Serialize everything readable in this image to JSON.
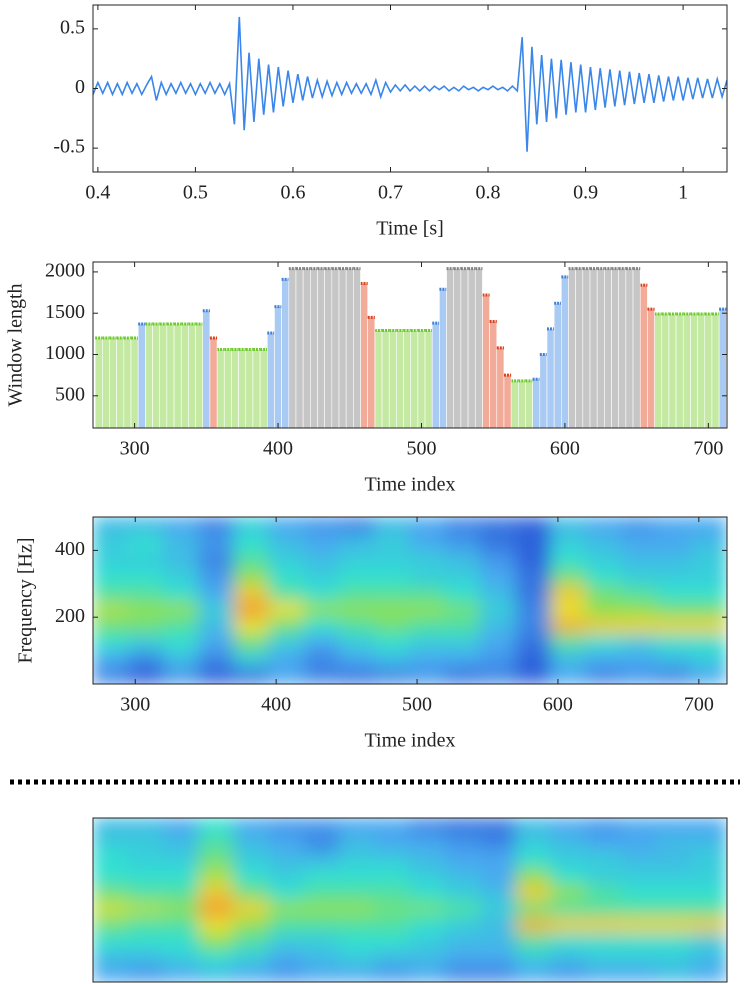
{
  "chart_data": [
    {
      "type": "line",
      "xlabel": "Time [s]",
      "color": "#3a86ea",
      "xlim": [
        0.395,
        1.045
      ],
      "ylim": [
        -0.7,
        0.7
      ],
      "xticks": [
        0.4,
        0.5,
        0.6,
        0.7,
        0.8,
        0.9,
        1
      ],
      "yticks": [
        -0.5,
        0,
        0.5
      ],
      "x": [
        0.395,
        0.4,
        0.405,
        0.41,
        0.415,
        0.42,
        0.425,
        0.43,
        0.435,
        0.44,
        0.445,
        0.45,
        0.455,
        0.46,
        0.465,
        0.47,
        0.475,
        0.48,
        0.485,
        0.49,
        0.495,
        0.5,
        0.505,
        0.51,
        0.515,
        0.52,
        0.525,
        0.53,
        0.535,
        0.54,
        0.545,
        0.55,
        0.555,
        0.56,
        0.565,
        0.57,
        0.575,
        0.58,
        0.585,
        0.59,
        0.595,
        0.6,
        0.605,
        0.61,
        0.615,
        0.62,
        0.625,
        0.63,
        0.635,
        0.64,
        0.645,
        0.65,
        0.655,
        0.66,
        0.665,
        0.67,
        0.675,
        0.68,
        0.685,
        0.69,
        0.695,
        0.7,
        0.705,
        0.71,
        0.715,
        0.72,
        0.725,
        0.73,
        0.735,
        0.74,
        0.745,
        0.75,
        0.755,
        0.76,
        0.765,
        0.77,
        0.775,
        0.78,
        0.785,
        0.79,
        0.795,
        0.8,
        0.805,
        0.81,
        0.815,
        0.82,
        0.825,
        0.83,
        0.835,
        0.84,
        0.845,
        0.85,
        0.855,
        0.86,
        0.865,
        0.87,
        0.875,
        0.88,
        0.885,
        0.89,
        0.895,
        0.9,
        0.905,
        0.91,
        0.915,
        0.92,
        0.925,
        0.93,
        0.935,
        0.94,
        0.945,
        0.95,
        0.955,
        0.96,
        0.965,
        0.97,
        0.975,
        0.98,
        0.985,
        0.99,
        0.995,
        1.0,
        1.005,
        1.01,
        1.015,
        1.02,
        1.025,
        1.03,
        1.035,
        1.04,
        1.045
      ],
      "values": [
        -0.05,
        0.05,
        -0.04,
        0.05,
        -0.05,
        0.04,
        -0.05,
        0.05,
        -0.04,
        0.04,
        -0.05,
        0.03,
        0.1,
        -0.1,
        0.05,
        -0.05,
        0.04,
        -0.04,
        0.05,
        -0.04,
        0.04,
        -0.05,
        0.04,
        -0.04,
        0.05,
        -0.04,
        0.04,
        -0.05,
        0.04,
        -0.3,
        0.6,
        -0.35,
        0.3,
        -0.28,
        0.25,
        -0.22,
        0.2,
        -0.2,
        0.18,
        -0.15,
        0.15,
        -0.12,
        0.12,
        -0.1,
        0.1,
        -0.08,
        0.07,
        -0.07,
        0.06,
        -0.06,
        0.05,
        -0.05,
        0.05,
        -0.04,
        0.04,
        -0.04,
        0.04,
        -0.05,
        0.07,
        -0.07,
        0.05,
        -0.03,
        0.03,
        -0.02,
        0.03,
        -0.02,
        0.02,
        -0.02,
        0.02,
        -0.02,
        0.02,
        -0.01,
        0.02,
        -0.02,
        0.01,
        -0.02,
        0.02,
        -0.01,
        0.01,
        -0.02,
        0.01,
        -0.01,
        0.02,
        -0.01,
        0.01,
        -0.02,
        0.02,
        -0.02,
        0.43,
        -0.53,
        0.35,
        -0.3,
        0.28,
        -0.28,
        0.25,
        -0.25,
        0.24,
        -0.22,
        0.22,
        -0.2,
        0.2,
        -0.2,
        0.18,
        -0.18,
        0.17,
        -0.16,
        0.16,
        -0.15,
        0.15,
        -0.14,
        0.14,
        -0.13,
        0.13,
        -0.12,
        0.12,
        -0.12,
        0.11,
        -0.11,
        0.1,
        -0.1,
        0.1,
        -0.1,
        0.09,
        -0.09,
        0.09,
        -0.08,
        0.08,
        -0.08,
        0.08,
        -0.07,
        0.07
      ]
    },
    {
      "type": "stem",
      "xlabel": "Time index",
      "ylabel": "Window length",
      "xlim": [
        271,
        713
      ],
      "ylim": [
        110,
        2120
      ],
      "xticks": [
        300,
        400,
        500,
        600,
        700
      ],
      "yticks": [
        500,
        1000,
        1500,
        2000
      ],
      "series": [
        {
          "color": "#6cc92c",
          "fill": "#c4e9a2",
          "x": [
            275,
            280,
            285,
            290,
            295,
            300,
            310,
            315,
            320,
            325,
            330,
            335,
            340,
            345,
            360,
            365,
            370,
            375,
            380,
            385,
            390,
            470,
            475,
            480,
            485,
            490,
            495,
            500,
            505,
            565,
            570,
            575,
            665,
            670,
            675,
            680,
            685,
            690,
            695,
            700,
            705
          ],
          "values": [
            1200,
            1200,
            1200,
            1200,
            1200,
            1200,
            1370,
            1370,
            1370,
            1370,
            1370,
            1370,
            1370,
            1370,
            1060,
            1060,
            1060,
            1060,
            1060,
            1060,
            1060,
            1290,
            1290,
            1290,
            1290,
            1290,
            1290,
            1290,
            1290,
            680,
            680,
            680,
            1490,
            1490,
            1490,
            1490,
            1490,
            1490,
            1490,
            1490,
            1490
          ]
        },
        {
          "color": "#3f7fdc",
          "fill": "#a9caf2",
          "x": [
            305,
            350,
            395,
            400,
            405,
            510,
            515,
            580,
            585,
            590,
            595,
            600,
            710
          ],
          "values": [
            1370,
            1530,
            1260,
            1580,
            1910,
            1380,
            1790,
            700,
            1000,
            1310,
            1620,
            1940,
            1550
          ]
        },
        {
          "color": "#d8401e",
          "fill": "#f2ab99",
          "x": [
            355,
            460,
            465,
            545,
            550,
            555,
            560,
            655,
            660
          ],
          "values": [
            1200,
            1860,
            1450,
            1720,
            1400,
            1080,
            750,
            1840,
            1550
          ]
        },
        {
          "color": "#808080",
          "fill": "#c6c6c6",
          "x": [
            410,
            415,
            420,
            425,
            430,
            435,
            440,
            445,
            450,
            455,
            520,
            525,
            530,
            535,
            540,
            605,
            610,
            615,
            620,
            625,
            630,
            635,
            640,
            645,
            650
          ],
          "values": [
            2040,
            2040,
            2040,
            2040,
            2040,
            2040,
            2040,
            2040,
            2040,
            2040,
            2040,
            2040,
            2040,
            2040,
            2040,
            2040,
            2040,
            2040,
            2040,
            2040,
            2040,
            2040,
            2040,
            2040,
            2040
          ]
        }
      ]
    },
    {
      "type": "heatmap",
      "xlabel": "Time index",
      "ylabel": "Frequency [Hz]",
      "xlim": [
        270,
        720
      ],
      "ylim": [
        0,
        500
      ],
      "xticks": [
        300,
        400,
        500,
        600,
        700
      ],
      "yticks": [
        200,
        400
      ],
      "colormap": [
        [
          0,
          "#1f3fd0"
        ],
        [
          0.3,
          "#4aa8f0"
        ],
        [
          0.45,
          "#30e0d0"
        ],
        [
          0.6,
          "#8ee050"
        ],
        [
          0.75,
          "#e8e030"
        ],
        [
          0.9,
          "#f0a030"
        ]
      ],
      "z": [
        [
          0.2,
          0.1,
          0.25,
          0.1,
          0.15,
          0.3,
          0.2,
          0.15,
          0.2,
          0.25,
          0.15,
          0.2,
          0.1,
          0.3,
          0.2,
          0.25,
          0.2,
          0.3
        ],
        [
          0.3,
          0.2,
          0.35,
          0.2,
          0.4,
          0.3,
          0.2,
          0.3,
          0.35,
          0.3,
          0.3,
          0.25,
          0.1,
          0.35,
          0.3,
          0.3,
          0.35,
          0.4
        ],
        [
          0.45,
          0.4,
          0.45,
          0.3,
          0.55,
          0.4,
          0.3,
          0.4,
          0.45,
          0.4,
          0.4,
          0.3,
          0.15,
          0.5,
          0.45,
          0.4,
          0.45,
          0.45
        ],
        [
          0.55,
          0.55,
          0.5,
          0.35,
          0.75,
          0.55,
          0.45,
          0.5,
          0.55,
          0.5,
          0.5,
          0.35,
          0.2,
          0.85,
          0.8,
          0.78,
          0.78,
          0.78
        ],
        [
          0.65,
          0.6,
          0.6,
          0.4,
          0.9,
          0.75,
          0.6,
          0.6,
          0.6,
          0.6,
          0.55,
          0.4,
          0.2,
          0.75,
          0.6,
          0.6,
          0.55,
          0.55
        ],
        [
          0.5,
          0.5,
          0.45,
          0.3,
          0.8,
          0.5,
          0.45,
          0.5,
          0.5,
          0.5,
          0.45,
          0.35,
          0.15,
          0.8,
          0.55,
          0.5,
          0.45,
          0.45
        ],
        [
          0.45,
          0.45,
          0.4,
          0.25,
          0.6,
          0.45,
          0.4,
          0.45,
          0.45,
          0.4,
          0.4,
          0.3,
          0.15,
          0.55,
          0.45,
          0.4,
          0.4,
          0.4
        ],
        [
          0.4,
          0.4,
          0.35,
          0.2,
          0.5,
          0.4,
          0.35,
          0.4,
          0.4,
          0.4,
          0.35,
          0.25,
          0.1,
          0.45,
          0.4,
          0.35,
          0.35,
          0.4
        ],
        [
          0.4,
          0.45,
          0.35,
          0.25,
          0.45,
          0.35,
          0.3,
          0.35,
          0.4,
          0.3,
          0.25,
          0.15,
          0.1,
          0.4,
          0.35,
          0.3,
          0.3,
          0.35
        ],
        [
          0.35,
          0.35,
          0.3,
          0.2,
          0.4,
          0.3,
          0.25,
          0.2,
          0.35,
          0.3,
          0.2,
          0.15,
          0.1,
          0.35,
          0.3,
          0.25,
          0.3,
          0.3
        ]
      ]
    },
    {
      "type": "heatmap",
      "colormap": [
        [
          0,
          "#1f3fd0"
        ],
        [
          0.3,
          "#4aa8f0"
        ],
        [
          0.45,
          "#30e0d0"
        ],
        [
          0.6,
          "#8ee050"
        ],
        [
          0.75,
          "#e8e030"
        ],
        [
          0.9,
          "#f0a030"
        ]
      ],
      "z": [
        [
          0.3,
          0.25,
          0.3,
          0.35,
          0.3,
          0.25,
          0.3,
          0.3,
          0.25,
          0.3,
          0.2,
          0.2,
          0.3,
          0.25,
          0.3,
          0.3,
          0.35,
          0.3
        ],
        [
          0.35,
          0.35,
          0.4,
          0.45,
          0.4,
          0.3,
          0.35,
          0.4,
          0.35,
          0.35,
          0.3,
          0.3,
          0.4,
          0.35,
          0.4,
          0.4,
          0.4,
          0.35
        ],
        [
          0.45,
          0.45,
          0.45,
          0.6,
          0.5,
          0.4,
          0.4,
          0.45,
          0.45,
          0.4,
          0.35,
          0.35,
          0.5,
          0.45,
          0.45,
          0.45,
          0.45,
          0.4
        ],
        [
          0.55,
          0.5,
          0.5,
          0.75,
          0.6,
          0.5,
          0.5,
          0.5,
          0.5,
          0.45,
          0.4,
          0.35,
          0.85,
          0.8,
          0.8,
          0.78,
          0.78,
          0.8
        ],
        [
          0.7,
          0.65,
          0.6,
          0.9,
          0.78,
          0.6,
          0.6,
          0.6,
          0.55,
          0.55,
          0.5,
          0.4,
          0.55,
          0.5,
          0.5,
          0.5,
          0.5,
          0.5
        ],
        [
          0.55,
          0.5,
          0.5,
          0.8,
          0.55,
          0.45,
          0.5,
          0.5,
          0.5,
          0.45,
          0.4,
          0.35,
          0.8,
          0.6,
          0.5,
          0.45,
          0.45,
          0.45
        ],
        [
          0.45,
          0.45,
          0.45,
          0.65,
          0.45,
          0.4,
          0.45,
          0.45,
          0.45,
          0.4,
          0.35,
          0.3,
          0.6,
          0.45,
          0.4,
          0.4,
          0.4,
          0.4
        ],
        [
          0.45,
          0.4,
          0.4,
          0.55,
          0.4,
          0.35,
          0.35,
          0.4,
          0.4,
          0.35,
          0.3,
          0.3,
          0.45,
          0.4,
          0.4,
          0.35,
          0.35,
          0.4
        ],
        [
          0.4,
          0.4,
          0.35,
          0.5,
          0.35,
          0.3,
          0.2,
          0.35,
          0.3,
          0.3,
          0.25,
          0.2,
          0.4,
          0.35,
          0.3,
          0.3,
          0.35,
          0.35
        ],
        [
          0.35,
          0.35,
          0.3,
          0.45,
          0.3,
          0.25,
          0.25,
          0.3,
          0.3,
          0.2,
          0.15,
          0.15,
          0.35,
          0.3,
          0.25,
          0.3,
          0.3,
          0.3
        ]
      ]
    }
  ]
}
